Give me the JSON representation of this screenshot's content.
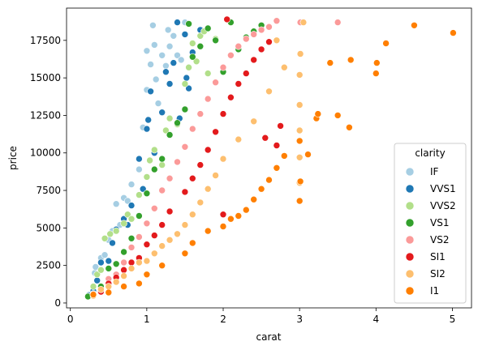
{
  "chart_data": {
    "type": "scatter",
    "title": "",
    "xlabel": "carat",
    "ylabel": "price",
    "xlim": [
      -0.05,
      5.25
    ],
    "ylim": [
      -326,
      19650
    ],
    "xticks": [
      0,
      1,
      2,
      3,
      4,
      5
    ],
    "yticks": [
      0,
      2500,
      5000,
      7500,
      10000,
      12500,
      15000,
      17500
    ],
    "grid": false,
    "legend": {
      "title": "clarity",
      "placement": "center-right"
    },
    "series": [
      {
        "name": "IF",
        "color": "#a6cee3",
        "x": [
          0.25,
          0.3,
          0.32,
          0.33,
          0.4,
          0.45,
          0.5,
          0.55,
          0.6,
          0.65,
          0.7,
          0.75,
          0.8,
          0.9,
          0.95,
          1.0,
          1.0,
          1.05,
          1.08,
          1.1,
          1.12,
          1.15,
          1.2,
          1.25,
          1.28,
          1.3,
          1.35,
          1.4,
          1.45,
          1.5
        ],
        "y": [
          550,
          900,
          2000,
          2400,
          3000,
          3200,
          4200,
          4800,
          6600,
          5200,
          7000,
          6800,
          7900,
          8900,
          11700,
          14200,
          16800,
          15900,
          18500,
          17200,
          14900,
          13300,
          16500,
          15800,
          18200,
          17100,
          17800,
          16500,
          16200,
          18700
        ]
      },
      {
        "name": "VVS1",
        "color": "#1f78b4",
        "x": [
          0.24,
          0.3,
          0.35,
          0.4,
          0.5,
          0.55,
          0.6,
          0.7,
          0.75,
          0.8,
          0.9,
          0.95,
          1.0,
          1.02,
          1.05,
          1.1,
          1.2,
          1.25,
          1.3,
          1.35,
          1.4,
          1.43,
          1.5,
          1.52,
          1.55,
          1.6,
          1.7
        ],
        "y": [
          520,
          800,
          1500,
          2700,
          2800,
          4000,
          4900,
          5600,
          5200,
          6500,
          9600,
          7600,
          11600,
          12200,
          14100,
          10000,
          12700,
          15400,
          14600,
          16000,
          18700,
          12300,
          17900,
          15000,
          14300,
          16700,
          18200
        ]
      },
      {
        "name": "VVS2",
        "color": "#b2df8a",
        "x": [
          0.23,
          0.3,
          0.35,
          0.4,
          0.45,
          0.52,
          0.6,
          0.7,
          0.75,
          0.8,
          0.9,
          1.0,
          1.04,
          1.1,
          1.2,
          1.25,
          1.3,
          1.4,
          1.5,
          1.55,
          1.6,
          1.65,
          1.7,
          1.75,
          1.8,
          1.9
        ],
        "y": [
          450,
          1100,
          1900,
          2200,
          4300,
          4600,
          4800,
          5300,
          5900,
          5600,
          7200,
          8400,
          9500,
          10200,
          9200,
          11500,
          12300,
          11900,
          14600,
          15700,
          17300,
          16100,
          17800,
          18100,
          15300,
          17600
        ]
      },
      {
        "name": "VS1",
        "color": "#33a02c",
        "x": [
          0.23,
          0.3,
          0.4,
          0.5,
          0.6,
          0.7,
          0.8,
          0.9,
          1.0,
          1.1,
          1.2,
          1.3,
          1.4,
          1.5,
          1.55,
          1.6,
          1.7,
          1.8,
          1.9,
          2.0,
          2.1,
          2.2,
          2.3,
          2.4,
          2.5
        ],
        "y": [
          430,
          620,
          1100,
          2300,
          2600,
          3400,
          4300,
          5800,
          7300,
          8900,
          9600,
          11200,
          12000,
          12900,
          18600,
          16400,
          17100,
          18300,
          17500,
          15400,
          18700,
          16900,
          17700,
          18100,
          18500
        ]
      },
      {
        "name": "VS2",
        "color": "#fb9a99",
        "x": [
          0.3,
          0.4,
          0.5,
          0.6,
          0.7,
          0.8,
          0.9,
          1.0,
          1.1,
          1.2,
          1.3,
          1.4,
          1.5,
          1.6,
          1.7,
          1.8,
          1.9,
          2.0,
          2.1,
          2.2,
          2.3,
          2.4,
          2.5,
          2.6,
          2.7,
          3.01,
          3.5
        ],
        "y": [
          600,
          800,
          1600,
          1900,
          2700,
          3700,
          4400,
          5300,
          6300,
          7500,
          8300,
          9400,
          10400,
          11600,
          12600,
          13600,
          14700,
          15700,
          16500,
          17100,
          17600,
          17900,
          18200,
          18400,
          18800,
          18700,
          18700
        ]
      },
      {
        "name": "SI1",
        "color": "#e31a1c",
        "x": [
          0.3,
          0.4,
          0.5,
          0.6,
          0.7,
          0.8,
          0.9,
          1.0,
          1.1,
          1.2,
          1.3,
          1.5,
          1.6,
          1.7,
          1.8,
          1.9,
          2.0,
          2.0,
          2.05,
          2.1,
          2.2,
          2.3,
          2.4,
          2.5,
          2.55,
          2.6,
          2.7,
          2.75
        ],
        "y": [
          550,
          750,
          1300,
          1700,
          2200,
          2700,
          3000,
          3900,
          4500,
          5200,
          6100,
          7400,
          8300,
          9200,
          10200,
          11400,
          5900,
          12600,
          18900,
          13700,
          14600,
          15300,
          16200,
          16900,
          11000,
          17400,
          10500,
          11800
        ]
      },
      {
        "name": "SI2",
        "color": "#fdbf6f",
        "x": [
          0.3,
          0.4,
          0.5,
          0.6,
          0.7,
          0.8,
          0.9,
          1.0,
          1.1,
          1.2,
          1.3,
          1.4,
          1.5,
          1.6,
          1.7,
          1.8,
          1.9,
          2.0,
          2.2,
          2.4,
          2.6,
          2.8,
          3.0,
          3.0,
          3.0,
          3.0,
          3.0,
          3.01,
          3.05,
          2.7
        ],
        "y": [
          480,
          900,
          1100,
          1400,
          1800,
          2300,
          2700,
          2800,
          3300,
          3800,
          4200,
          4600,
          5200,
          5900,
          6700,
          7600,
          8500,
          9600,
          10900,
          12100,
          14100,
          15700,
          8000,
          9700,
          11500,
          13200,
          15200,
          16600,
          18700,
          17500
        ]
      },
      {
        "name": "I1",
        "color": "#ff7f00",
        "x": [
          0.3,
          0.5,
          0.7,
          0.9,
          1.0,
          1.2,
          1.5,
          1.6,
          1.8,
          2.0,
          2.1,
          2.2,
          2.3,
          2.4,
          2.5,
          2.6,
          2.7,
          2.8,
          3.0,
          3.0,
          3.01,
          3.11,
          3.22,
          3.24,
          3.4,
          3.5,
          3.65,
          3.67,
          4.0,
          4.01,
          4.13,
          4.5,
          5.01
        ],
        "y": [
          560,
          700,
          1100,
          1300,
          1900,
          2500,
          3300,
          4000,
          4800,
          5100,
          5600,
          5800,
          6200,
          6900,
          7600,
          8200,
          9000,
          9800,
          10800,
          6800,
          8100,
          9900,
          12300,
          12600,
          16000,
          12500,
          11700,
          16200,
          15300,
          16000,
          17300,
          18500,
          18000
        ]
      }
    ]
  }
}
